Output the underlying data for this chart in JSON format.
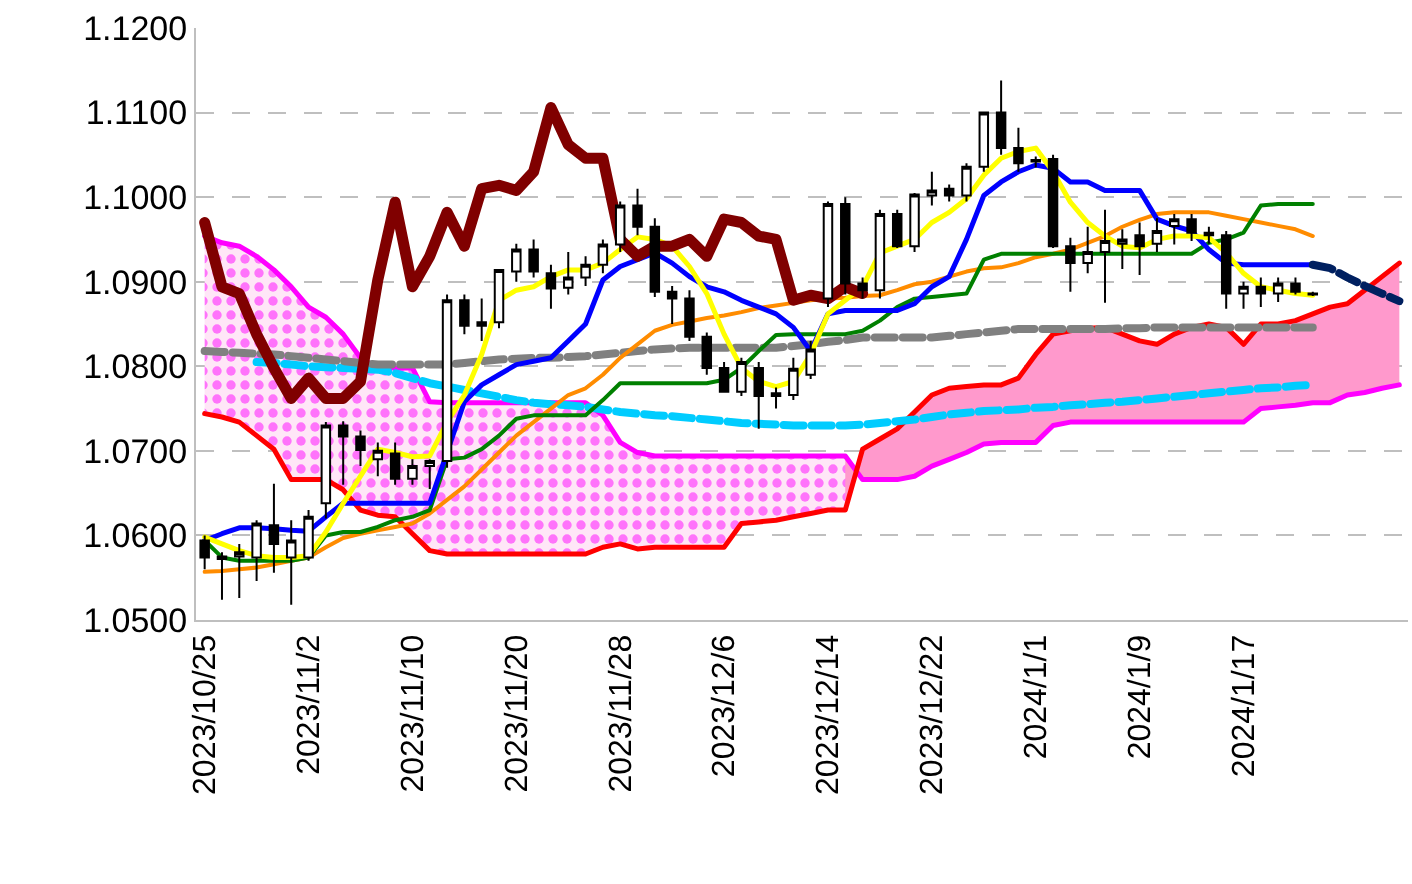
{
  "chart_data": {
    "type": "candlestick",
    "categories": [
      "2023/10/25",
      null,
      null,
      null,
      null,
      null,
      "2023/11/2",
      null,
      null,
      null,
      null,
      null,
      "2023/11/10",
      null,
      null,
      null,
      null,
      null,
      "2023/11/20",
      null,
      null,
      null,
      null,
      null,
      "2023/11/28",
      null,
      null,
      null,
      null,
      null,
      "2023/12/6",
      null,
      null,
      null,
      null,
      null,
      "2023/12/14",
      null,
      null,
      null,
      null,
      null,
      "2023/12/22",
      null,
      null,
      null,
      null,
      null,
      "2024/1/1",
      null,
      null,
      null,
      null,
      null,
      "2024/1/9",
      null,
      null,
      null,
      null,
      null,
      "2024/1/17",
      null,
      null,
      null,
      null,
      null,
      null,
      null,
      null,
      null
    ],
    "ohlc": [
      [
        1.0594,
        1.06,
        1.056,
        1.0574
      ],
      [
        1.0572,
        1.058,
        1.0524,
        1.0575
      ],
      [
        1.0575,
        1.059,
        1.0526,
        1.058
      ],
      [
        1.0574,
        1.0618,
        1.0546,
        1.0614
      ],
      [
        1.0612,
        1.0661,
        1.0556,
        1.059
      ],
      [
        1.0574,
        1.0618,
        1.0518,
        1.0594
      ],
      [
        1.0574,
        1.063,
        1.057,
        1.0622
      ],
      [
        1.0638,
        1.0734,
        1.062,
        1.073
      ],
      [
        1.073,
        1.0735,
        1.066,
        1.0717
      ],
      [
        1.0717,
        1.0724,
        1.0682,
        1.0701
      ],
      [
        1.069,
        1.071,
        1.067,
        1.07
      ],
      [
        1.0697,
        1.071,
        1.066,
        1.0667
      ],
      [
        1.0667,
        1.069,
        1.066,
        1.0682
      ],
      [
        1.0682,
        1.069,
        1.0655,
        1.0688
      ],
      [
        1.0688,
        1.0885,
        1.068,
        1.0878
      ],
      [
        1.0878,
        1.0885,
        1.0838,
        1.0848
      ],
      [
        1.0848,
        1.088,
        1.083,
        1.0852
      ],
      [
        1.0852,
        1.0915,
        1.0845,
        1.0914
      ],
      [
        1.0912,
        1.0945,
        1.09,
        1.0938
      ],
      [
        1.0938,
        1.095,
        1.0905,
        1.0912
      ],
      [
        1.091,
        1.092,
        1.0868,
        1.0892
      ],
      [
        1.0893,
        1.0935,
        1.0885,
        1.0905
      ],
      [
        1.0905,
        1.093,
        1.0895,
        1.092
      ],
      [
        1.092,
        1.095,
        1.091,
        1.0944
      ],
      [
        1.0944,
        1.0995,
        1.0935,
        1.099
      ],
      [
        1.099,
        1.101,
        1.0955,
        1.0965
      ],
      [
        1.0965,
        1.0975,
        1.0882,
        1.0888
      ],
      [
        1.0888,
        1.0895,
        1.085,
        1.088
      ],
      [
        1.088,
        1.089,
        1.083,
        1.0835
      ],
      [
        1.0835,
        1.084,
        1.079,
        1.0798
      ],
      [
        1.0798,
        1.0805,
        1.077,
        1.077
      ],
      [
        1.077,
        1.081,
        1.0765,
        1.0805
      ],
      [
        1.0798,
        1.0805,
        1.0726,
        1.0765
      ],
      [
        1.0765,
        1.0775,
        1.075,
        1.0768
      ],
      [
        1.0766,
        1.081,
        1.076,
        1.0797
      ],
      [
        1.079,
        1.083,
        1.0785,
        1.082
      ],
      [
        1.088,
        1.0995,
        1.087,
        1.0992
      ],
      [
        1.0992,
        1.1,
        1.0885,
        1.0898
      ],
      [
        1.0898,
        1.0905,
        1.088,
        1.089
      ],
      [
        1.089,
        1.0985,
        1.088,
        1.098
      ],
      [
        1.098,
        1.0985,
        1.094,
        1.0942
      ],
      [
        1.0942,
        1.1005,
        1.0935,
        1.1003
      ],
      [
        1.1002,
        1.103,
        1.099,
        1.1008
      ],
      [
        1.101,
        1.1015,
        1.0995,
        1.1002
      ],
      [
        1.1002,
        1.104,
        1.0995,
        1.1036
      ],
      [
        1.1036,
        1.11,
        1.103,
        1.11
      ],
      [
        1.11,
        1.1138,
        1.105,
        1.1058
      ],
      [
        1.1058,
        1.1082,
        1.103,
        1.104
      ],
      [
        1.1042,
        1.1048,
        1.1035,
        1.1044
      ],
      [
        1.1045,
        1.105,
        1.094,
        1.0942
      ],
      [
        1.0942,
        1.0952,
        1.0888,
        1.0922
      ],
      [
        1.0922,
        1.0965,
        1.091,
        1.0935
      ],
      [
        1.0935,
        1.0985,
        1.0875,
        1.0948
      ],
      [
        1.0945,
        1.0962,
        1.0915,
        1.095
      ],
      [
        1.0955,
        1.097,
        1.0908,
        1.0942
      ],
      [
        1.0945,
        1.0975,
        1.0935,
        1.096
      ],
      [
        1.0966,
        1.098,
        1.0944,
        1.0974
      ],
      [
        1.0974,
        1.098,
        1.0948,
        1.0958
      ],
      [
        1.0958,
        1.0965,
        1.0945,
        1.0955
      ],
      [
        1.0955,
        1.096,
        1.0868,
        1.0886
      ],
      [
        1.0886,
        1.09,
        1.0868,
        1.0894
      ],
      [
        1.0894,
        1.0905,
        1.087,
        1.0886
      ],
      [
        1.0886,
        1.0905,
        1.0876,
        1.0898
      ],
      [
        1.0898,
        1.0905,
        1.0885,
        1.0888
      ],
      [
        1.0885,
        1.0888,
        1.0883,
        1.0886
      ],
      null,
      null,
      null,
      null,
      null
    ],
    "series": [
      {
        "type": "line",
        "color": "#ff00ff",
        "values": [
          1.0954,
          1.0946,
          1.0942,
          1.093,
          1.0914,
          1.0894,
          1.087,
          1.0858,
          1.0838,
          1.081,
          1.0798,
          1.0798,
          1.0798,
          1.0758,
          1.0757,
          1.0757,
          1.0757,
          1.0757,
          1.0757,
          1.0757,
          1.0757,
          1.0757,
          1.0757,
          1.0742,
          1.071,
          1.0698,
          1.0694,
          1.0694,
          1.0694,
          1.0694,
          1.0694,
          1.0694,
          1.0694,
          1.0694,
          1.0694,
          1.0694,
          1.0694,
          1.0694,
          1.0666,
          1.0666,
          1.0666,
          1.067,
          1.0682,
          1.069,
          1.0698,
          1.0708,
          1.071,
          1.071,
          1.071,
          1.073,
          1.0734,
          1.0734,
          1.0734,
          1.0734,
          1.0734,
          1.0734,
          1.0734,
          1.0734,
          1.0734,
          1.0734,
          1.0734,
          1.075,
          1.0752,
          1.0754,
          1.0757,
          1.0757,
          1.0766,
          1.0769,
          1.0774,
          1.0778
        ],
        "lower": [
          1.0744,
          1.074,
          1.0734,
          1.0718,
          1.0702,
          1.0666,
          1.0666,
          1.0666,
          1.0654,
          1.063,
          1.0624,
          1.0622,
          1.0602,
          1.0582,
          1.0578,
          1.0578,
          1.0578,
          1.0578,
          1.0578,
          1.0578,
          1.0578,
          1.0578,
          1.0578,
          1.0586,
          1.059,
          1.0584,
          1.0586,
          1.0586,
          1.0586,
          1.0586,
          1.0586,
          1.0614,
          1.0616,
          1.0618,
          1.0622,
          1.0626,
          1.063,
          1.063,
          1.0702,
          null,
          null,
          null,
          null,
          null,
          null,
          null,
          null,
          null,
          null,
          null,
          null,
          null,
          null,
          null,
          null,
          null,
          null,
          null,
          null,
          null,
          null,
          null,
          null,
          null,
          null,
          null,
          null,
          null,
          null,
          null
        ],
        "upper": [
          1.0954,
          1.0946,
          1.0942,
          1.093,
          1.0914,
          1.0894,
          1.087,
          1.0858,
          1.0838,
          1.081,
          1.0798,
          1.0798,
          1.0798,
          1.0758,
          1.0757,
          1.0757,
          1.0757,
          1.0757,
          1.0757,
          1.0757,
          1.0757,
          1.0757,
          1.0757,
          1.0742,
          1.071,
          1.0698,
          1.0694,
          1.0694,
          1.0694,
          1.0694,
          1.0694,
          1.0694,
          1.0694,
          1.0694,
          1.0694,
          1.0694,
          1.0694,
          1.0694,
          1.0666,
          null,
          null,
          null,
          null,
          null,
          null,
          null,
          null,
          null,
          null,
          null,
          null,
          null,
          null,
          null,
          null,
          null,
          null,
          null,
          null,
          null,
          null,
          null,
          null,
          null,
          null,
          null,
          null,
          null,
          null,
          null
        ]
      },
      {
        "type": "line",
        "color": "#ff0000",
        "values": [
          1.0744,
          1.074,
          1.0734,
          1.0718,
          1.0702,
          1.0666,
          1.0666,
          1.0666,
          1.0654,
          1.063,
          1.0624,
          1.0622,
          1.0602,
          1.0582,
          1.0578,
          1.0578,
          1.0578,
          1.0578,
          1.0578,
          1.0578,
          1.0578,
          1.0578,
          1.0578,
          1.0586,
          1.059,
          1.0584,
          1.0586,
          1.0586,
          1.0586,
          1.0586,
          1.0586,
          1.0614,
          1.0616,
          1.0618,
          1.0622,
          1.0626,
          1.063,
          1.063,
          1.0702,
          1.0714,
          1.0726,
          1.0746,
          1.0766,
          1.0774,
          1.0776,
          1.0778,
          1.0778,
          1.0786,
          1.0814,
          1.0838,
          1.0842,
          1.0845,
          1.0846,
          1.0838,
          1.083,
          1.0826,
          1.0838,
          1.0846,
          1.085,
          1.0846,
          1.0826,
          1.085,
          1.085,
          1.0854,
          1.0862,
          1.087,
          1.0874,
          1.089,
          1.0906,
          1.0922
        ],
        "lower": [
          null,
          null,
          null,
          null,
          null,
          null,
          null,
          null,
          null,
          null,
          null,
          null,
          null,
          null,
          null,
          null,
          null,
          null,
          null,
          null,
          null,
          null,
          null,
          null,
          null,
          null,
          null,
          null,
          null,
          null,
          null,
          null,
          null,
          null,
          null,
          null,
          null,
          1.0694,
          1.0666,
          1.0666,
          1.0666,
          1.067,
          1.0682,
          1.069,
          1.0698,
          1.0708,
          1.071,
          1.071,
          1.071,
          1.073,
          1.0734,
          1.0734,
          1.0734,
          1.0734,
          1.0734,
          1.0734,
          1.0734,
          1.0734,
          1.0734,
          1.0734,
          1.0734,
          1.075,
          1.0752,
          1.0754,
          1.0757,
          1.0757,
          1.0766,
          1.0769,
          1.0774,
          1.0778
        ],
        "upper": [
          null,
          null,
          null,
          null,
          null,
          null,
          null,
          null,
          null,
          null,
          null,
          null,
          null,
          null,
          null,
          null,
          null,
          null,
          null,
          null,
          null,
          null,
          null,
          null,
          null,
          null,
          null,
          null,
          null,
          null,
          null,
          null,
          null,
          null,
          null,
          null,
          null,
          1.063,
          1.0702,
          1.0714,
          1.0726,
          1.0746,
          1.0766,
          1.0774,
          1.0776,
          1.0778,
          1.0778,
          1.0786,
          1.0814,
          1.0838,
          1.0842,
          1.0845,
          1.0846,
          1.0838,
          1.083,
          1.0826,
          1.0838,
          1.0846,
          1.085,
          1.0846,
          1.0826,
          1.085,
          1.085,
          1.0854,
          1.0862,
          1.087,
          1.0874,
          1.089,
          1.0906,
          1.0922
        ]
      },
      {
        "type": "line",
        "color": "#00ccff",
        "line_style": "dashed",
        "values": [
          null,
          null,
          null,
          1.0805,
          1.0804,
          1.0802,
          1.08,
          1.0799,
          1.0798,
          1.0797,
          1.0796,
          1.0792,
          1.0786,
          1.078,
          1.0776,
          1.0772,
          1.0768,
          1.0764,
          1.076,
          1.0757,
          1.0755,
          1.0754,
          1.0752,
          1.0749,
          1.0746,
          1.0744,
          1.0742,
          1.0741,
          1.0739,
          1.0737,
          1.0735,
          1.0733,
          1.0732,
          1.0731,
          1.073,
          1.073,
          1.073,
          1.073,
          1.0731,
          1.0733,
          1.0735,
          1.0737,
          1.074,
          1.0743,
          1.0745,
          1.0747,
          1.0748,
          1.0749,
          1.0751,
          1.0752,
          1.0754,
          1.0755,
          1.0757,
          1.0758,
          1.076,
          1.0762,
          1.0764,
          1.0766,
          1.0768,
          1.077,
          1.0772,
          1.0774,
          1.0775,
          1.0777,
          1.0778,
          null,
          null,
          null,
          null,
          null
        ]
      },
      {
        "type": "line",
        "color": "#808080",
        "line_style": "dashed",
        "values": [
          1.0818,
          1.0817,
          1.0816,
          1.0815,
          1.0814,
          1.0812,
          1.081,
          1.0808,
          1.0806,
          1.0804,
          1.0802,
          1.0802,
          1.0802,
          1.0802,
          1.0802,
          1.0804,
          1.0806,
          1.0808,
          1.0809,
          1.081,
          1.081,
          1.0811,
          1.0812,
          1.0814,
          1.0816,
          1.0818,
          1.082,
          1.0821,
          1.0822,
          1.0822,
          1.0822,
          1.0822,
          1.0822,
          1.0822,
          1.0824,
          1.0826,
          1.0829,
          1.0831,
          1.0834,
          1.0834,
          1.0834,
          1.0834,
          1.0834,
          1.0836,
          1.0838,
          1.084,
          1.0842,
          1.0844,
          1.0844,
          1.0844,
          1.0844,
          1.0844,
          1.0844,
          1.0845,
          1.0845,
          1.0846,
          1.0846,
          1.0846,
          1.0846,
          1.0846,
          1.0846,
          1.0846,
          1.0846,
          1.0846,
          1.0846,
          null,
          null,
          null,
          null,
          null
        ]
      },
      {
        "type": "line",
        "color": "#ff8c00",
        "values": [
          1.0557,
          1.0558,
          1.056,
          1.0562,
          1.0566,
          1.057,
          1.0574,
          1.0586,
          1.0597,
          1.0602,
          1.0606,
          1.061,
          1.0614,
          1.0626,
          1.0642,
          1.0658,
          1.0678,
          1.0698,
          1.0718,
          1.0734,
          1.075,
          1.0766,
          1.0774,
          1.079,
          1.081,
          1.0826,
          1.0842,
          1.0849,
          1.0853,
          1.0857,
          1.086,
          1.0864,
          1.0869,
          1.0872,
          1.0875,
          1.0878,
          1.088,
          1.0881,
          1.0883,
          1.0884,
          1.089,
          1.0897,
          1.09,
          1.0906,
          1.0912,
          1.0916,
          1.0917,
          1.0922,
          1.0929,
          1.0933,
          1.0938,
          1.0946,
          1.0954,
          1.0965,
          1.0973,
          1.098,
          1.0982,
          1.0982,
          1.0982,
          1.0978,
          1.0974,
          1.097,
          1.0966,
          1.0962,
          1.0954,
          null,
          null,
          null,
          null,
          null
        ]
      },
      {
        "type": "line",
        "color": "#008000",
        "values": [
          1.0594,
          1.0574,
          1.057,
          1.057,
          1.057,
          1.057,
          1.0574,
          1.06,
          1.0604,
          1.0604,
          1.061,
          1.0618,
          1.0622,
          1.063,
          1.069,
          1.0692,
          1.0702,
          1.0718,
          1.0738,
          1.0742,
          1.0742,
          1.0742,
          1.0742,
          1.076,
          1.078,
          1.078,
          1.078,
          1.078,
          1.078,
          1.078,
          1.0784,
          1.0798,
          1.0818,
          1.0837,
          1.0838,
          1.0838,
          1.0838,
          1.0838,
          1.0842,
          1.0854,
          1.087,
          1.088,
          1.0882,
          1.0884,
          1.0886,
          1.0926,
          1.0933,
          1.0933,
          1.0933,
          1.0933,
          1.0933,
          1.0933,
          1.0933,
          1.0933,
          1.0933,
          1.0933,
          1.0933,
          1.0933,
          1.0946,
          1.095,
          1.0958,
          1.099,
          1.0992,
          1.0992,
          1.0992,
          null,
          null,
          null,
          null,
          null
        ]
      },
      {
        "type": "line",
        "color": "#0000ff",
        "values": [
          1.0594,
          1.0602,
          1.0609,
          1.0609,
          1.0608,
          1.0606,
          1.0605,
          1.0622,
          1.0638,
          1.0638,
          1.0638,
          1.0638,
          1.0638,
          1.0638,
          null,
          1.0758,
          1.0778,
          1.079,
          1.0802,
          1.0806,
          1.081,
          1.083,
          1.085,
          1.0902,
          1.0918,
          1.0926,
          1.0934,
          1.0922,
          1.0906,
          1.0894,
          1.0888,
          1.0878,
          1.087,
          1.0862,
          1.0846,
          1.0818,
          1.0862,
          1.0866,
          1.0866,
          1.0866,
          1.0866,
          1.0874,
          1.0894,
          1.0906,
          1.095,
          1.1002,
          1.1018,
          1.103,
          1.1038,
          1.1034,
          1.1018,
          1.1018,
          1.1008,
          1.1008,
          1.1008,
          1.0974,
          1.0966,
          1.096,
          1.0938,
          1.0922,
          1.092,
          1.092,
          1.092,
          1.092,
          1.092,
          null,
          null,
          null,
          null,
          null
        ]
      },
      {
        "type": "line",
        "color": "#002060",
        "line_style": "dashed",
        "values": [
          null,
          null,
          null,
          null,
          null,
          null,
          null,
          null,
          null,
          null,
          null,
          null,
          null,
          null,
          null,
          null,
          null,
          null,
          null,
          null,
          null,
          null,
          null,
          null,
          null,
          null,
          null,
          null,
          null,
          null,
          null,
          null,
          null,
          null,
          null,
          null,
          null,
          null,
          null,
          null,
          null,
          null,
          null,
          null,
          null,
          null,
          null,
          null,
          null,
          null,
          null,
          null,
          null,
          null,
          null,
          null,
          null,
          null,
          null,
          null,
          null,
          null,
          null,
          null,
          1.092,
          1.0916,
          1.0905,
          1.0895,
          1.0886,
          1.0877
        ]
      },
      {
        "type": "line",
        "color": "#ffff00",
        "values": [
          1.0598,
          1.059,
          1.0582,
          1.0576,
          1.0574,
          1.0574,
          1.0576,
          1.0604,
          1.0638,
          1.067,
          1.0702,
          1.0698,
          1.0693,
          1.0694,
          1.0734,
          1.0766,
          1.0814,
          1.0878,
          1.089,
          1.0894,
          1.0906,
          1.0914,
          1.0914,
          1.0922,
          1.0938,
          1.0953,
          1.095,
          1.0942,
          1.0918,
          1.0886,
          1.0838,
          1.0798,
          1.0782,
          1.0776,
          1.0782,
          1.0814,
          1.0862,
          1.0878,
          1.0894,
          1.0934,
          1.0942,
          1.095,
          1.097,
          1.0982,
          1.0998,
          1.1026,
          1.1046,
          1.1054,
          1.1058,
          1.103,
          1.0994,
          1.097,
          1.0954,
          1.0942,
          1.094,
          1.095,
          1.0954,
          1.0954,
          1.0952,
          1.0934,
          1.091,
          1.0894,
          1.089,
          1.0886,
          1.0884,
          null,
          null,
          null,
          null,
          null
        ]
      },
      {
        "type": "line",
        "color": "#800000",
        "values": [
          1.097,
          1.0894,
          1.0886,
          1.0838,
          1.0798,
          1.0762,
          1.0786,
          1.0762,
          1.0762,
          1.0782,
          1.0902,
          1.0994,
          1.0894,
          1.093,
          1.0982,
          1.0942,
          1.101,
          1.1014,
          1.1008,
          1.103,
          1.1106,
          1.1062,
          1.1046,
          1.1046,
          1.095,
          1.093,
          1.0942,
          1.0942,
          1.095,
          1.093,
          1.0974,
          1.097,
          1.0954,
          1.095,
          1.0878,
          1.0884,
          1.088,
          1.0894,
          1.0886,
          null,
          null,
          null,
          null,
          null,
          null,
          null,
          null,
          null,
          null,
          null,
          null,
          null,
          null,
          null,
          null,
          null,
          null,
          null,
          null,
          null,
          null,
          null,
          null,
          null,
          null,
          null,
          null,
          null,
          null,
          null
        ]
      }
    ],
    "ylim": [
      1.05,
      1.12
    ],
    "yticks": [
      {
        "value": 1.05,
        "label": "1.0500"
      },
      {
        "value": 1.06,
        "label": "1.0600"
      },
      {
        "value": 1.07,
        "label": "1.0700"
      },
      {
        "value": 1.08,
        "label": "1.0800"
      },
      {
        "value": 1.09,
        "label": "1.0900"
      },
      {
        "value": 1.1,
        "label": "1.1000"
      },
      {
        "value": 1.11,
        "label": "1.1100"
      },
      {
        "value": 1.12,
        "label": "1.1200"
      }
    ],
    "grid": "y"
  }
}
